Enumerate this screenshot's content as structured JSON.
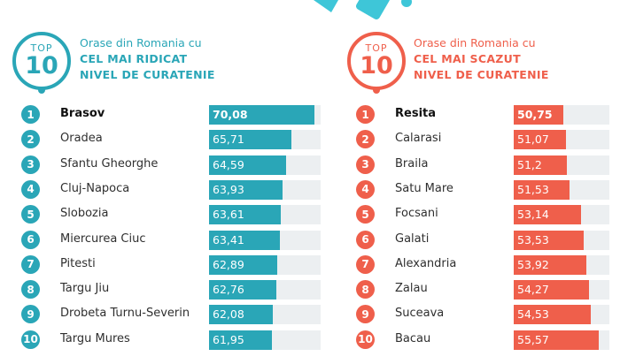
{
  "colors": {
    "teal": "#2aa6b7",
    "red": "#ef5f4b",
    "bar_bg": "#eceff1",
    "deco_blue": "#3ec6d8"
  },
  "chart_data": [
    {
      "type": "bar",
      "orientation": "horizontal",
      "badge": {
        "top": "TOP",
        "num": "10"
      },
      "title_lines": [
        "Orase din Romania cu",
        "CEL MAI RIDICAT",
        "NIVEL DE CURATENIE"
      ],
      "categories": [
        "Brasov",
        "Oradea",
        "Sfantu Gheorghe",
        "Cluj-Napoca",
        "Slobozia",
        "Miercurea Ciuc",
        "Pitesti",
        "Targu Jiu",
        "Drobeta Turnu-Severin",
        "Targu Mures"
      ],
      "ranks": [
        "1",
        "2",
        "3",
        "4",
        "5",
        "6",
        "7",
        "8",
        "9",
        "10"
      ],
      "values": [
        70.08,
        65.71,
        64.59,
        63.93,
        63.61,
        63.41,
        62.89,
        62.76,
        62.08,
        61.95
      ],
      "value_labels": [
        "70,08",
        "65,71",
        "64,59",
        "63,93",
        "63,61",
        "63,41",
        "62,89",
        "62,76",
        "62,08",
        "61,95"
      ],
      "color": "#2aa6b7"
    },
    {
      "type": "bar",
      "orientation": "horizontal",
      "badge": {
        "top": "TOP",
        "num": "10"
      },
      "title_lines": [
        "Orase din Romania cu",
        "CEL MAI SCAZUT",
        "NIVEL DE CURATENIE"
      ],
      "categories": [
        "Resita",
        "Calarasi",
        "Braila",
        "Satu Mare",
        "Focsani",
        "Galati",
        "Alexandria",
        "Zalau",
        "Suceava",
        "Bacau"
      ],
      "ranks": [
        "1",
        "2",
        "3",
        "4",
        "5",
        "6",
        "7",
        "8",
        "9",
        "10"
      ],
      "values": [
        50.75,
        51.07,
        51.2,
        51.53,
        53.14,
        53.53,
        53.92,
        54.27,
        54.53,
        55.57
      ],
      "value_labels": [
        "50,75",
        "51,07",
        "51,2",
        "51,53",
        "53,14",
        "53,53",
        "53,92",
        "54,27",
        "54,53",
        "55,57"
      ],
      "color": "#ef5f4b"
    }
  ]
}
